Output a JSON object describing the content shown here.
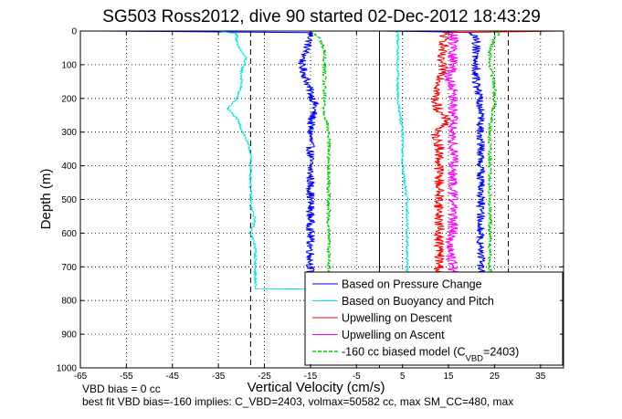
{
  "chart_data": {
    "type": "line",
    "title": "SG503 Ross2012, dive 90 started 02-Dec-2012 18:43:29",
    "xlabel": "Vertical Velocity (cm/s)",
    "ylabel": "Depth (m)",
    "xlim": [
      -65,
      40
    ],
    "ylim": [
      1000,
      0
    ],
    "xticks": [
      -65,
      -55,
      -45,
      -35,
      -25,
      -15,
      -5,
      5,
      15,
      25,
      35
    ],
    "yticks": [
      0,
      100,
      200,
      300,
      400,
      500,
      600,
      700,
      800,
      900,
      1000
    ],
    "grid": true,
    "legend_position": "bottom-right",
    "dashed_vertical_lines_x": [
      -28,
      28
    ],
    "solid_vertical_line_x": 0,
    "series": [
      {
        "name": "Based on Pressure Change",
        "color": "#0000ff",
        "dash": "solid",
        "noise": 0.9,
        "points": [
          [
            -60,
            0
          ],
          [
            -40,
            2
          ],
          [
            -15,
            5
          ],
          [
            -15,
            20
          ],
          [
            -16,
            60
          ],
          [
            -17,
            100
          ],
          [
            -16,
            140
          ],
          [
            -15,
            180
          ],
          [
            -14,
            220
          ],
          [
            -15,
            280
          ],
          [
            -15,
            340
          ],
          [
            -15,
            400
          ],
          [
            -15,
            460
          ],
          [
            -15,
            520
          ],
          [
            -15,
            580
          ],
          [
            -15,
            640
          ],
          [
            -15,
            700
          ],
          [
            -15,
            760
          ],
          [
            -5,
            766
          ],
          [
            0,
            768
          ],
          [
            22,
            760
          ],
          [
            22,
            700
          ],
          [
            22,
            640
          ],
          [
            22,
            580
          ],
          [
            22,
            520
          ],
          [
            22,
            460
          ],
          [
            22,
            400
          ],
          [
            22,
            340
          ],
          [
            22,
            280
          ],
          [
            22,
            220
          ],
          [
            21,
            160
          ],
          [
            21,
            100
          ],
          [
            21,
            60
          ],
          [
            21,
            20
          ],
          [
            20,
            5
          ],
          [
            12,
            2
          ],
          [
            0,
            0
          ]
        ]
      },
      {
        "name": "Based on Buoyancy and Pitch",
        "color": "#00e5e5",
        "dash": "solid",
        "noise": 0.3,
        "points": [
          [
            -65,
            0
          ],
          [
            -35,
            0
          ],
          [
            -31,
            8
          ],
          [
            -31,
            40
          ],
          [
            -29,
            80
          ],
          [
            -30,
            120
          ],
          [
            -30,
            160
          ],
          [
            -31,
            200
          ],
          [
            -33,
            230
          ],
          [
            -31,
            260
          ],
          [
            -30,
            290
          ],
          [
            -29,
            320
          ],
          [
            -28,
            360
          ],
          [
            -28,
            400
          ],
          [
            -28,
            440
          ],
          [
            -28,
            480
          ],
          [
            -28,
            520
          ],
          [
            -27,
            560
          ],
          [
            -28,
            600
          ],
          [
            -27,
            640
          ],
          [
            -27,
            700
          ],
          [
            -27,
            765
          ],
          [
            -10,
            766
          ],
          [
            0,
            766
          ],
          [
            6,
            760
          ],
          [
            6,
            700
          ],
          [
            6,
            600
          ],
          [
            6,
            500
          ],
          [
            5,
            400
          ],
          [
            5,
            300
          ],
          [
            4,
            200
          ],
          [
            4,
            100
          ],
          [
            4,
            30
          ],
          [
            4,
            5
          ],
          [
            3,
            0
          ]
        ]
      },
      {
        "name": "Upwelling on Descent",
        "color": "#ff0000",
        "dash": "solid",
        "noise": 1.1,
        "points": [
          [
            0,
            0
          ],
          [
            40,
            0
          ],
          [
            14,
            5
          ],
          [
            14,
            40
          ],
          [
            13,
            80
          ],
          [
            14,
            120
          ],
          [
            13,
            160
          ],
          [
            12,
            200
          ],
          [
            13,
            240
          ],
          [
            15,
            270
          ],
          [
            12,
            300
          ],
          [
            13,
            340
          ],
          [
            13,
            400
          ],
          [
            13,
            460
          ],
          [
            13,
            520
          ],
          [
            13,
            580
          ],
          [
            13,
            640
          ],
          [
            13,
            700
          ],
          [
            13,
            760
          ]
        ]
      },
      {
        "name": "Upwelling on Ascent",
        "color": "#ff00ff",
        "dash": "solid",
        "noise": 1.1,
        "points": [
          [
            16,
            760
          ],
          [
            16,
            700
          ],
          [
            15,
            640
          ],
          [
            16,
            580
          ],
          [
            16,
            520
          ],
          [
            16,
            460
          ],
          [
            16,
            400
          ],
          [
            16,
            340
          ],
          [
            16,
            300
          ],
          [
            16,
            260
          ],
          [
            16,
            220
          ],
          [
            16,
            180
          ],
          [
            15,
            140
          ],
          [
            16,
            100
          ],
          [
            16,
            60
          ],
          [
            16,
            20
          ],
          [
            16,
            5
          ]
        ]
      },
      {
        "name": "-160 cc biased model (C_VBD=2403)",
        "color": "#00cc00",
        "dash": "dashed",
        "noise": 0.4,
        "points": [
          [
            -15,
            0
          ],
          [
            -13,
            20
          ],
          [
            -12,
            60
          ],
          [
            -12,
            100
          ],
          [
            -12,
            160
          ],
          [
            -12,
            200
          ],
          [
            -12,
            240
          ],
          [
            -11,
            300
          ],
          [
            -11,
            360
          ],
          [
            -11,
            420
          ],
          [
            -11,
            480
          ],
          [
            -11,
            540
          ],
          [
            -11,
            600
          ],
          [
            -11,
            660
          ],
          [
            -11,
            720
          ],
          [
            -11,
            760
          ],
          [
            24,
            760
          ],
          [
            24,
            700
          ],
          [
            24,
            640
          ],
          [
            24,
            580
          ],
          [
            24,
            520
          ],
          [
            24,
            460
          ],
          [
            24,
            400
          ],
          [
            24,
            340
          ],
          [
            24,
            280
          ],
          [
            25,
            220
          ],
          [
            25,
            160
          ],
          [
            24,
            100
          ],
          [
            24,
            60
          ],
          [
            25,
            20
          ],
          [
            26,
            5
          ],
          [
            24,
            0
          ]
        ]
      }
    ],
    "legend": {
      "entries": [
        {
          "label": "Based on Pressure Change",
          "color": "#0000ff",
          "dash": "solid"
        },
        {
          "label": "Based on Buoyancy and Pitch",
          "color": "#00e5e5",
          "dash": "solid"
        },
        {
          "label": "Upwelling on Descent",
          "color": "#ff0000",
          "dash": "solid"
        },
        {
          "label": "Upwelling on Ascent",
          "color": "#ff00ff",
          "dash": "solid"
        },
        {
          "label": "-160 cc biased model (C",
          "sub": "VBD",
          "tail": "=2403)",
          "color": "#00cc00",
          "dash": "dashed"
        }
      ]
    }
  },
  "notes": {
    "line1": "VBD bias = 0 cc",
    "line2": "best fit VBD bias=-160 implies: C_VBD=2403, volmax=50582 cc, max SM_CC=480, max"
  }
}
